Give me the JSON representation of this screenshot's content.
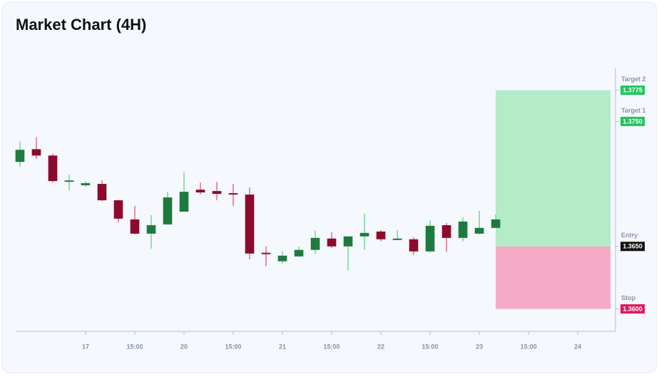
{
  "chart_data": {
    "type": "candlestick",
    "title": "Market Chart (4H)",
    "x": [
      0,
      1,
      2,
      3,
      4,
      5,
      6,
      7,
      8,
      9,
      10,
      11,
      12,
      13,
      14,
      15,
      16,
      17,
      18,
      19,
      20,
      21,
      22,
      23,
      24,
      25,
      26,
      27,
      28,
      29
    ],
    "open": [
      1.37176,
      1.37278,
      1.37227,
      1.37017,
      1.36989,
      1.37,
      1.36869,
      1.36716,
      1.36602,
      1.36676,
      1.36778,
      1.36954,
      1.36943,
      1.36926,
      1.36915,
      1.36449,
      1.36381,
      1.3642,
      1.36472,
      1.36563,
      1.365,
      1.3658,
      1.36619,
      1.36551,
      1.36557,
      1.3646,
      1.3667,
      1.36568,
      1.36602,
      1.36648
    ],
    "high": [
      1.37341,
      1.37375,
      1.37244,
      1.37074,
      1.37023,
      1.37028,
      1.36875,
      1.36824,
      1.3675,
      1.36937,
      1.37091,
      1.37011,
      1.37017,
      1.37,
      1.36971,
      1.365,
      1.3646,
      1.365,
      1.36625,
      1.36614,
      1.3658,
      1.36761,
      1.36631,
      1.36631,
      1.36574,
      1.3671,
      1.36687,
      1.36733,
      1.36784,
      1.36756
    ],
    "low": [
      1.37136,
      1.37199,
      1.37011,
      1.36949,
      1.36977,
      1.36864,
      1.36693,
      1.36597,
      1.36483,
      1.36676,
      1.36778,
      1.36915,
      1.36869,
      1.36824,
      1.36398,
      1.36341,
      1.36364,
      1.36415,
      1.36438,
      1.36489,
      1.36307,
      1.36472,
      1.3654,
      1.36551,
      1.36432,
      1.36449,
      1.36455,
      1.3654,
      1.36597,
      1.36648
    ],
    "close": [
      1.37273,
      1.37227,
      1.37023,
      1.37028,
      1.37006,
      1.36869,
      1.36722,
      1.36602,
      1.3667,
      1.36892,
      1.36937,
      1.36932,
      1.3692,
      1.36915,
      1.36443,
      1.36438,
      1.36426,
      1.36472,
      1.36568,
      1.365,
      1.3658,
      1.36608,
      1.36557,
      1.36563,
      1.3646,
      1.36665,
      1.36568,
      1.36699,
      1.36648,
      1.36716
    ],
    "up_color": "#1f7a3f",
    "up_wick_color": "#5fd38a",
    "down_color": "#8c0b2d",
    "down_wick_color": "#e0567d",
    "xlim": [
      -0.26,
      36.3
    ],
    "xticks": [
      {
        "value": 4,
        "label": "17"
      },
      {
        "value": 7,
        "label": "15:00"
      },
      {
        "value": 10,
        "label": "20"
      },
      {
        "value": 13,
        "label": "15:00"
      },
      {
        "value": 16,
        "label": "21"
      },
      {
        "value": 19,
        "label": "15:00"
      },
      {
        "value": 22,
        "label": "22"
      },
      {
        "value": 25,
        "label": "15:00"
      },
      {
        "value": 28,
        "label": "23"
      },
      {
        "value": 31,
        "label": "15:00"
      },
      {
        "value": 34,
        "label": "24"
      }
    ],
    "ylim": [
      1.3582,
      1.3793
    ],
    "levels": [
      {
        "name": "Target 2",
        "value": 1.3775,
        "label": "1.3775",
        "color": "#22c55e"
      },
      {
        "name": "Target 1",
        "value": 1.375,
        "label": "1.3750",
        "color": "#22c55e"
      },
      {
        "name": "Entry",
        "value": 1.365,
        "label": "1.3650",
        "color": "#111111"
      },
      {
        "name": "Stop",
        "value": 1.36,
        "label": "1.3600",
        "color": "#e3175c"
      }
    ],
    "zone_x": [
      29,
      36
    ],
    "profit_zone_color": "#b4ecca",
    "loss_zone_color": "#f5aac6"
  }
}
